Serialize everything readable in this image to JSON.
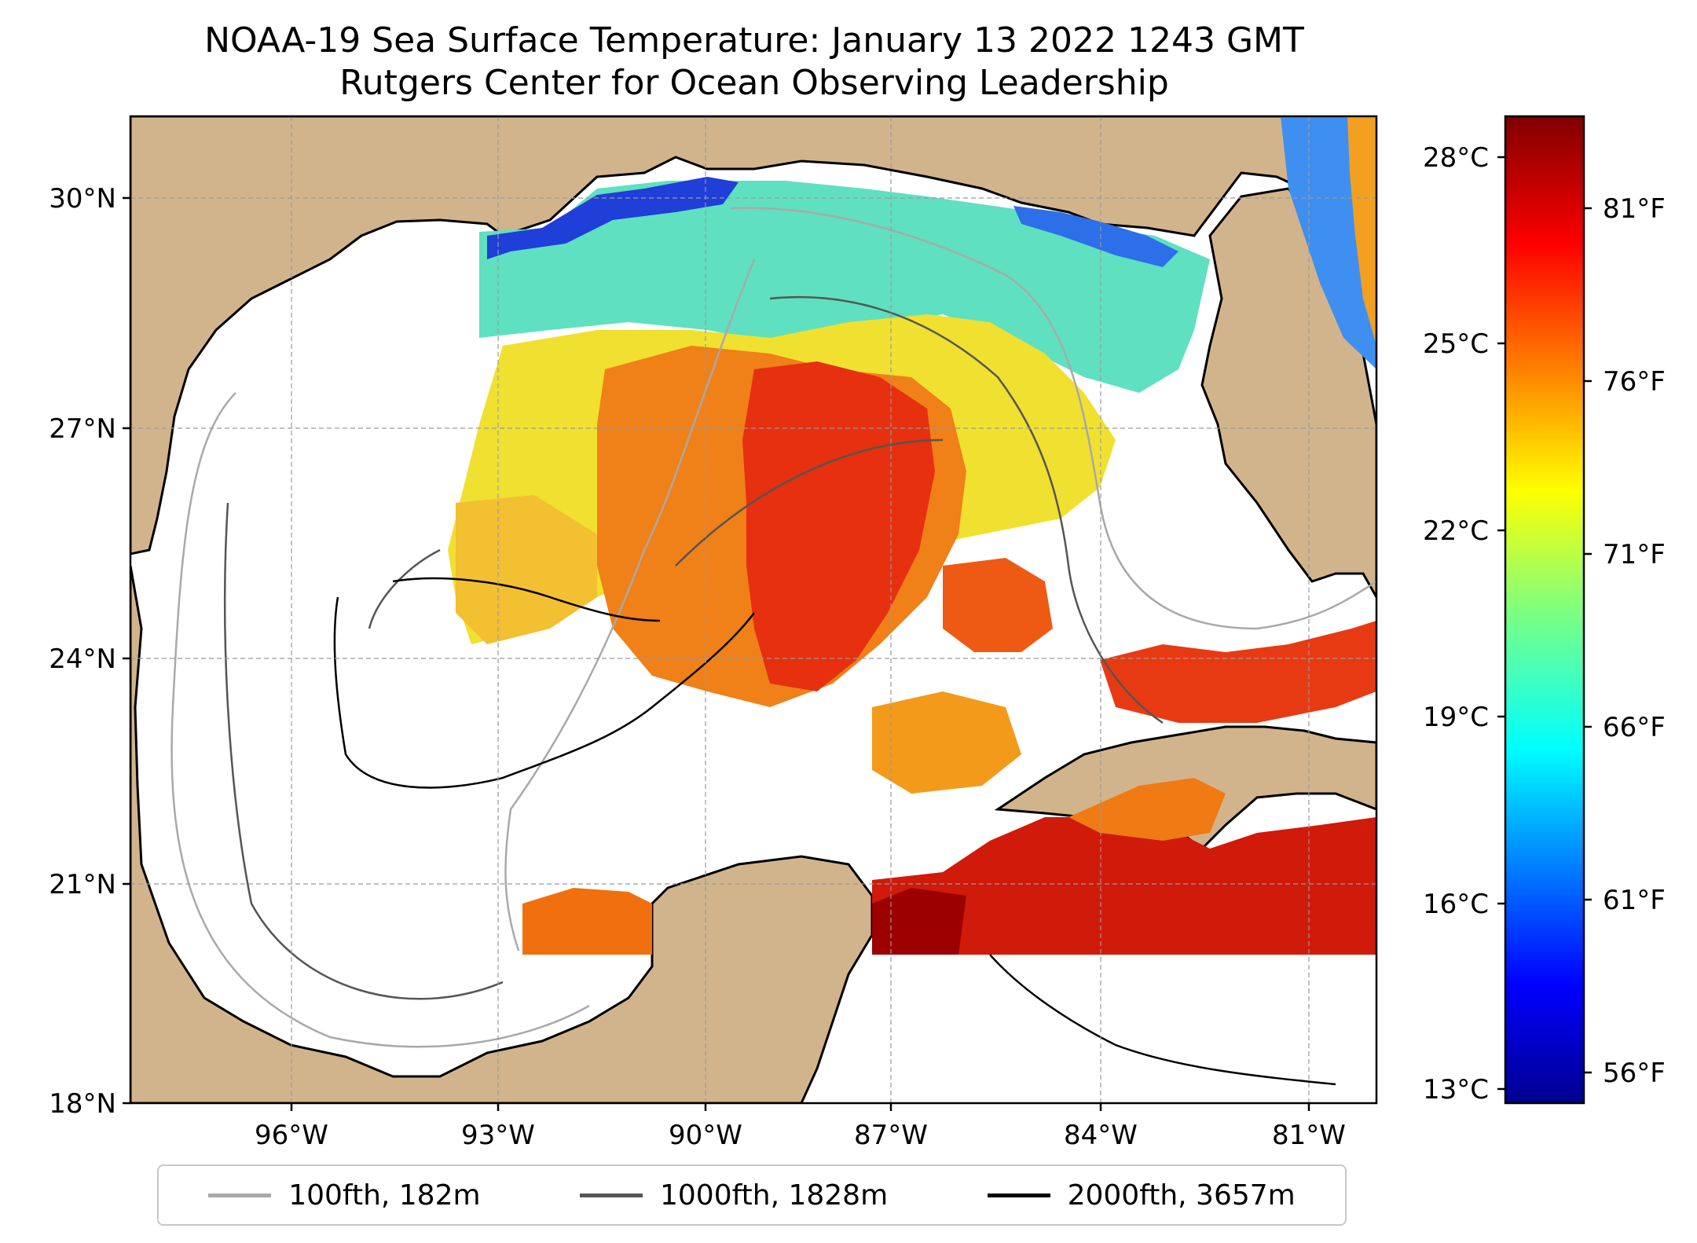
{
  "title": "NOAA-19 Sea Surface Temperature: January 13 2022 1243 GMT",
  "subtitle": "Rutgers Center for Ocean Observing Leadership",
  "map": {
    "lat_range": [
      18,
      31
    ],
    "lon_range": [
      -98.5,
      -80.8
    ],
    "lat_ticks": [
      "30°N",
      "27°N",
      "24°N",
      "21°N",
      "18°N"
    ],
    "lon_ticks": [
      "96°W",
      "93°W",
      "90°W",
      "87°W",
      "84°W",
      "81°W"
    ],
    "land_color": "#d2b48c",
    "grid": true
  },
  "colorbar": {
    "colormap": "jet",
    "celsius_labels": [
      "28°C",
      "25°C",
      "22°C",
      "19°C",
      "16°C",
      "13°C"
    ],
    "fahrenheit_labels": [
      "81°F",
      "76°F",
      "71°F",
      "66°F",
      "61°F",
      "56°F"
    ]
  },
  "legend": [
    {
      "label": "100fth, 182m",
      "color": "#a9a9a9"
    },
    {
      "label": "1000fth, 1828m",
      "color": "#555555"
    },
    {
      "label": "2000fth, 3657m",
      "color": "#000000"
    }
  ]
}
